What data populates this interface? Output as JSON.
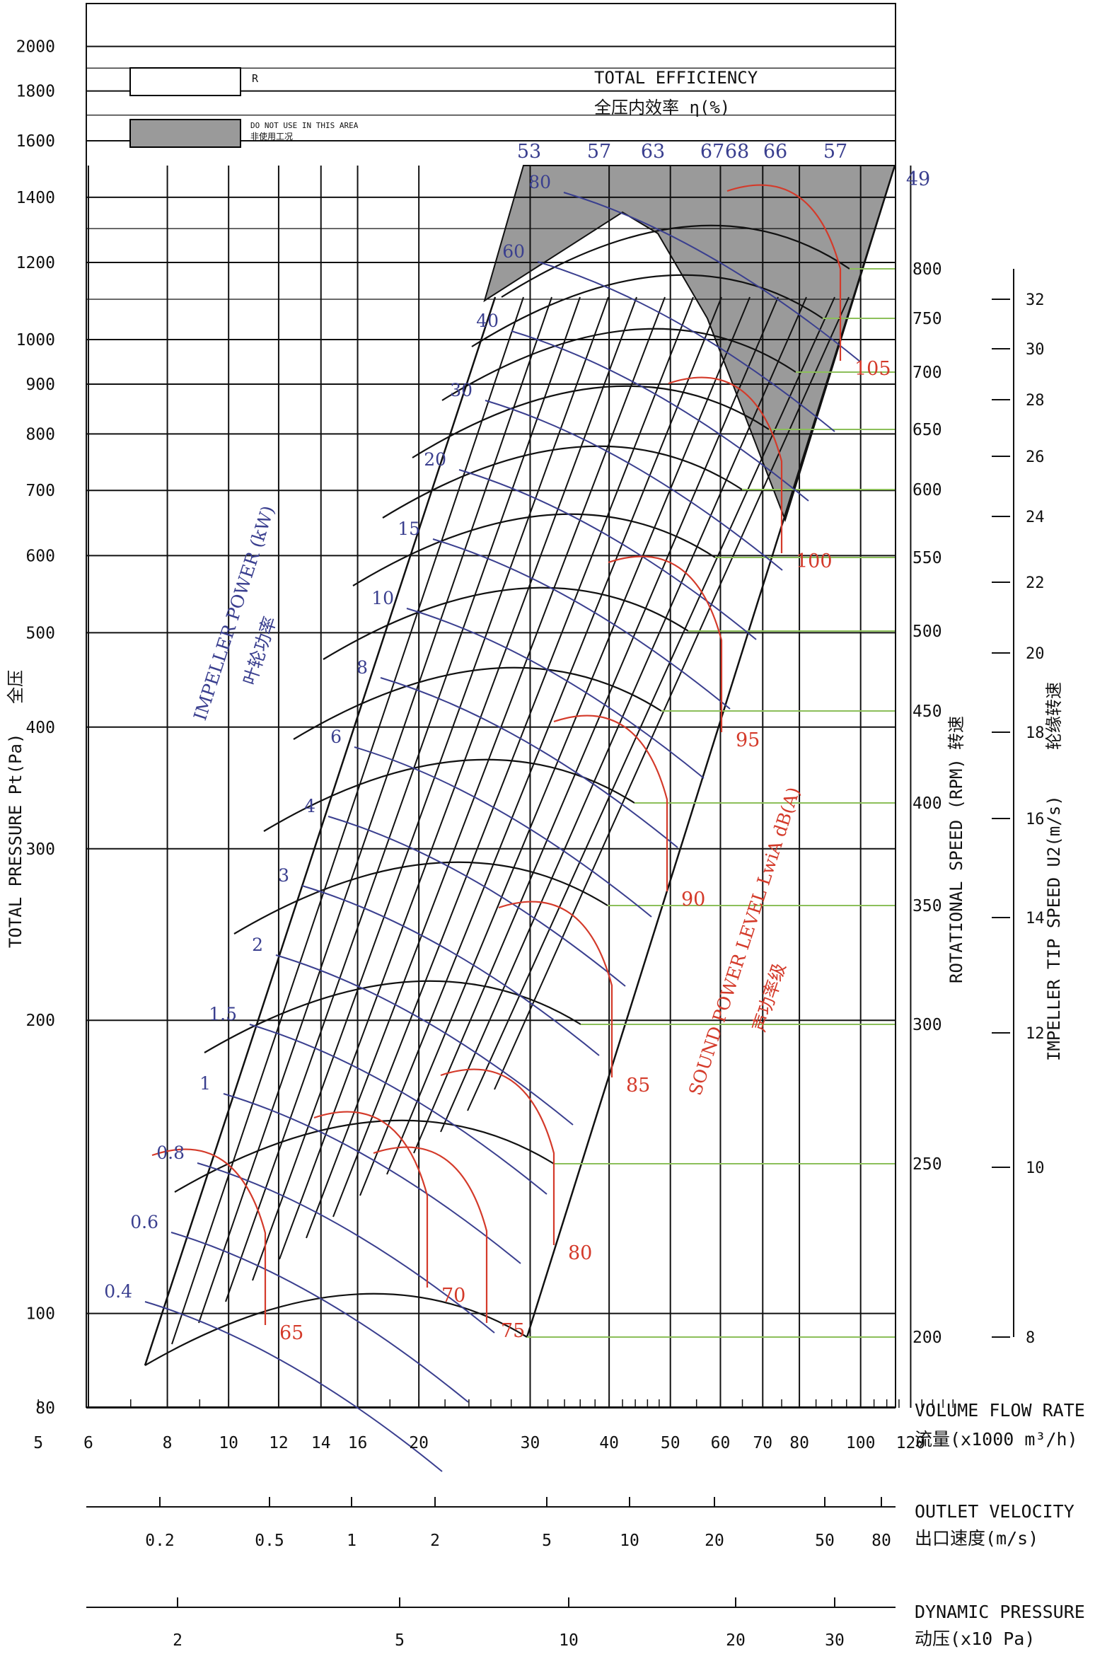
{
  "legend": {
    "normal_label": "R",
    "restricted_label": "DO NOT USE IN THIS AREA",
    "restricted_label_cn": "非使用工况",
    "restricted_color": "#9a9a9a"
  },
  "efficiency_title": "TOTAL EFFICIENCY",
  "efficiency_title_cn": "全压内效率  η(%)",
  "colors": {
    "black": "#111111",
    "blue": "#3a3f8f",
    "red": "#d43a2a",
    "green": "#8cbf5a",
    "gray": "#9a9a9a"
  },
  "chart_data": {
    "type": "fan-performance-chart",
    "x_axis": {
      "label": "VOLUME FLOW RATE",
      "label_cn": "流量(x1000 m³/h)",
      "scale": "log",
      "range": [
        4.3,
        145
      ],
      "ticks": [
        5,
        6,
        8,
        10,
        12,
        14,
        16,
        20,
        30,
        40,
        50,
        60,
        70,
        80,
        100,
        120
      ]
    },
    "y_axis": {
      "label": "TOTAL PRESSURE Pt(Pa)",
      "label_cn": "全压",
      "scale": "log",
      "range": [
        80,
        2000
      ],
      "ticks": [
        80,
        100,
        200,
        300,
        400,
        500,
        600,
        700,
        800,
        900,
        1000,
        1200,
        1400,
        1600,
        1800,
        2000
      ]
    },
    "outlet_velocity_axis": {
      "label": "OUTLET VELOCITY",
      "label_cn": "出口速度(m/s)",
      "ticks": [
        "0.2",
        "0.5",
        "1",
        "2",
        "5",
        "10",
        "20",
        "50",
        "80"
      ]
    },
    "dynamic_pressure_axis": {
      "label": "DYNAMIC PRESSURE",
      "label_cn": "动压(x10 Pa)",
      "ticks": [
        "2",
        "5",
        "10",
        "20",
        "30"
      ]
    },
    "rotational_speed": {
      "label": "ROTATIONAL SPEED (RPM)",
      "label_cn": "转速",
      "values": [
        200,
        250,
        300,
        350,
        400,
        450,
        500,
        550,
        600,
        650,
        700,
        750,
        800
      ]
    },
    "tip_speed": {
      "label": "IMPELLER TIP SPEED U2(m/s)",
      "label_cn": "轮缘转速",
      "values": [
        8,
        10,
        12,
        14,
        16,
        18,
        20,
        22,
        24,
        26,
        28,
        30,
        32
      ]
    },
    "efficiency_values": [
      "53",
      "57",
      "63",
      "67",
      "68",
      "66",
      "57",
      "49"
    ],
    "impeller_power": {
      "label": "IMPELLER POWER (kW)",
      "label_cn": "叶轮功率",
      "values": [
        "0.4",
        "0.6",
        "0.8",
        "1",
        "1.5",
        "2",
        "3",
        "4",
        "6",
        "8",
        "10",
        "15",
        "20",
        "30",
        "40",
        "60",
        "80"
      ]
    },
    "sound_power": {
      "label": "SOUND POWER LEVEL LwiA dB(A)",
      "label_cn": "声功率级",
      "values": [
        "65",
        "70",
        "75",
        "80",
        "85",
        "90",
        "95",
        "100",
        "105"
      ]
    }
  }
}
